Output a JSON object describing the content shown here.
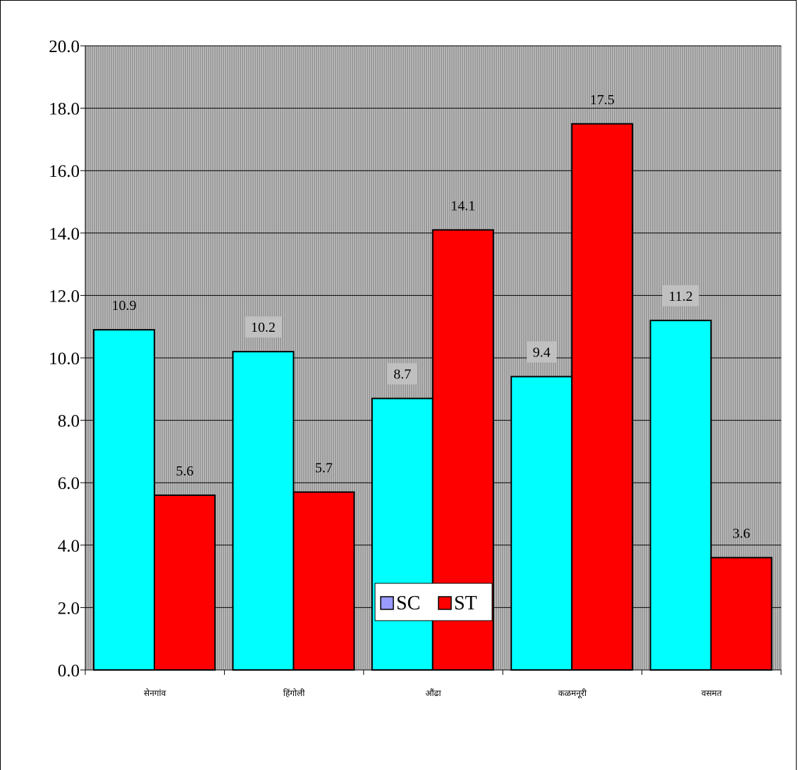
{
  "chart_data": {
    "type": "bar",
    "categories": [
      "सेनगांव",
      "हिंगोली",
      "औंढा",
      "कळमनूरी",
      "वसमत"
    ],
    "series": [
      {
        "name": "SC",
        "values": [
          10.9,
          10.2,
          8.7,
          9.4,
          11.2
        ],
        "color": "#00ffff",
        "legend_color": "#9999ff"
      },
      {
        "name": "ST",
        "values": [
          5.6,
          5.7,
          14.1,
          17.5,
          3.6
        ],
        "color": "#ff0000",
        "legend_color": "#ff0000"
      }
    ],
    "ylim": [
      0,
      20
    ],
    "yticks": [
      "0.0",
      "2.0",
      "4.0",
      "6.0",
      "8.0",
      "10.0",
      "12.0",
      "14.0",
      "16.0",
      "18.0",
      "20.0"
    ],
    "grid": true,
    "plot_background": "#a6a6a6",
    "data_labels": true,
    "legend_position": "bottom",
    "title": "",
    "xlabel": "",
    "ylabel": ""
  }
}
